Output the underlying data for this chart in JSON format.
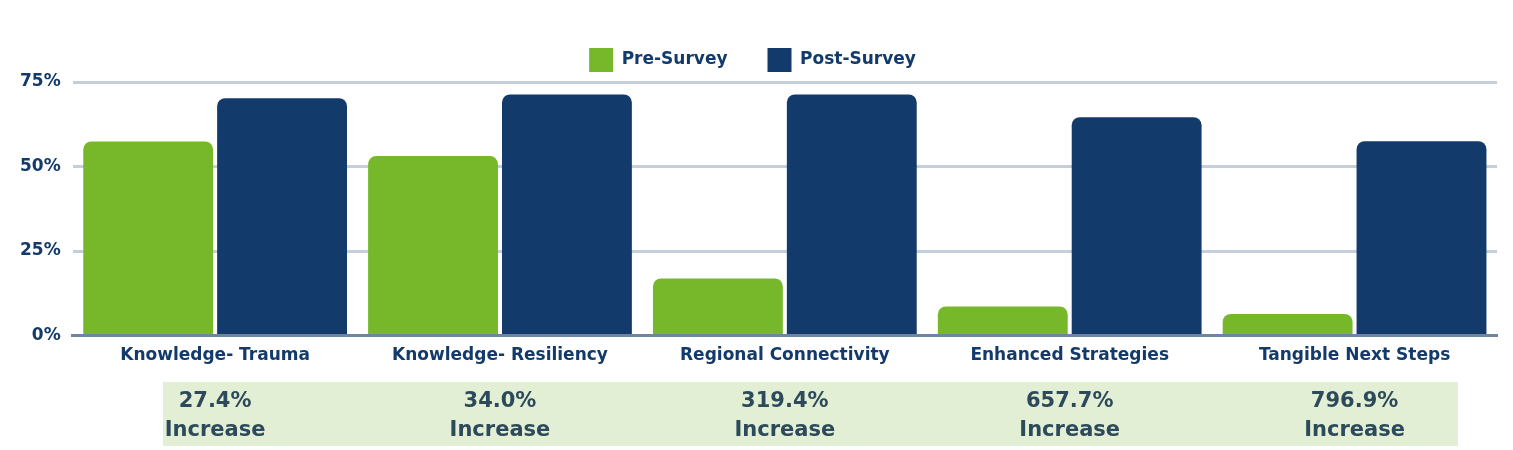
{
  "chart_data": {
    "type": "bar",
    "categories": [
      "Knowledge- Trauma",
      "Knowledge- Resiliency",
      "Regional Connectivity",
      "Enhanced Strategies",
      "Tangible Next Steps"
    ],
    "series": [
      {
        "name": "Pre-Survey",
        "color": "#76b82a",
        "values": [
          57.4,
          53.1,
          16.9,
          8.6,
          6.4
        ]
      },
      {
        "name": "Post-Survey",
        "color": "#123a6b",
        "values": [
          70.2,
          71.3,
          71.3,
          64.6,
          57.5
        ]
      }
    ],
    "ylim": [
      0,
      75
    ],
    "yticks": [
      {
        "value": 0,
        "label": "0%"
      },
      {
        "value": 25,
        "label": "25%"
      },
      {
        "value": 50,
        "label": "50%"
      },
      {
        "value": 75,
        "label": "75%"
      }
    ],
    "grid": "y",
    "legend": "top",
    "annotations": [
      "27.4%\nIncrease",
      "34.0%\nIncrease",
      "319.4%\nIncrease",
      "657.7%\nIncrease",
      "796.9%\nIncrease"
    ]
  }
}
